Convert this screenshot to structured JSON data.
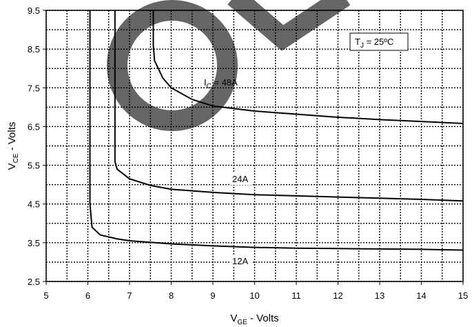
{
  "chart_data": {
    "type": "line",
    "x_label": {
      "main": "V",
      "sub": "GE",
      "rest": " - Volts"
    },
    "y_label": {
      "main": "V",
      "sub": "CE",
      "rest": " - Volts"
    },
    "xlim": [
      5,
      15
    ],
    "xticks": [
      5,
      6,
      7,
      8,
      9,
      10,
      11,
      12,
      13,
      14,
      15
    ],
    "ylim": [
      2.5,
      9.5
    ],
    "yticks": [
      2.5,
      3.5,
      4.5,
      5.5,
      6.5,
      7.5,
      8.5,
      9.5
    ],
    "x_minor_grid": [
      5.5,
      6.5,
      7.5,
      8.5,
      9.5,
      10.5,
      11.5,
      12.5,
      13.5,
      14.5
    ],
    "y_minor_grid": [
      3,
      4,
      5,
      6,
      7,
      8,
      9
    ],
    "grid": true,
    "series": [
      {
        "name": "12A",
        "color": "#000000",
        "x": [
          6.05,
          6.05,
          6.1,
          6.3,
          6.7,
          7,
          8,
          9,
          10,
          11,
          12,
          13,
          14,
          15
        ],
        "values": [
          9.5,
          4.5,
          3.9,
          3.7,
          3.6,
          3.55,
          3.47,
          3.42,
          3.38,
          3.36,
          3.35,
          3.34,
          3.33,
          3.31
        ]
      },
      {
        "name": "24A",
        "color": "#000000",
        "x": [
          6.65,
          6.65,
          6.7,
          7,
          7.5,
          8,
          9,
          10,
          11,
          12,
          13,
          14,
          15
        ],
        "values": [
          9.5,
          5.6,
          5.4,
          5.15,
          4.98,
          4.88,
          4.8,
          4.74,
          4.71,
          4.68,
          4.65,
          4.62,
          4.58
        ]
      },
      {
        "name": "48A",
        "color": "#000000",
        "x": [
          7.57,
          7.57,
          7.6,
          7.8,
          8,
          8.5,
          9,
          10,
          11,
          12,
          13,
          14,
          15
        ],
        "values": [
          9.5,
          8.6,
          8.2,
          7.75,
          7.5,
          7.2,
          7.03,
          6.9,
          6.82,
          6.74,
          6.68,
          6.63,
          6.58
        ]
      }
    ],
    "series_label_prefix": {
      "main": "I",
      "sub": "C",
      "rest": " = "
    },
    "condition": {
      "main": "T",
      "sub": "J",
      "rest": "  = 25ºC"
    }
  }
}
